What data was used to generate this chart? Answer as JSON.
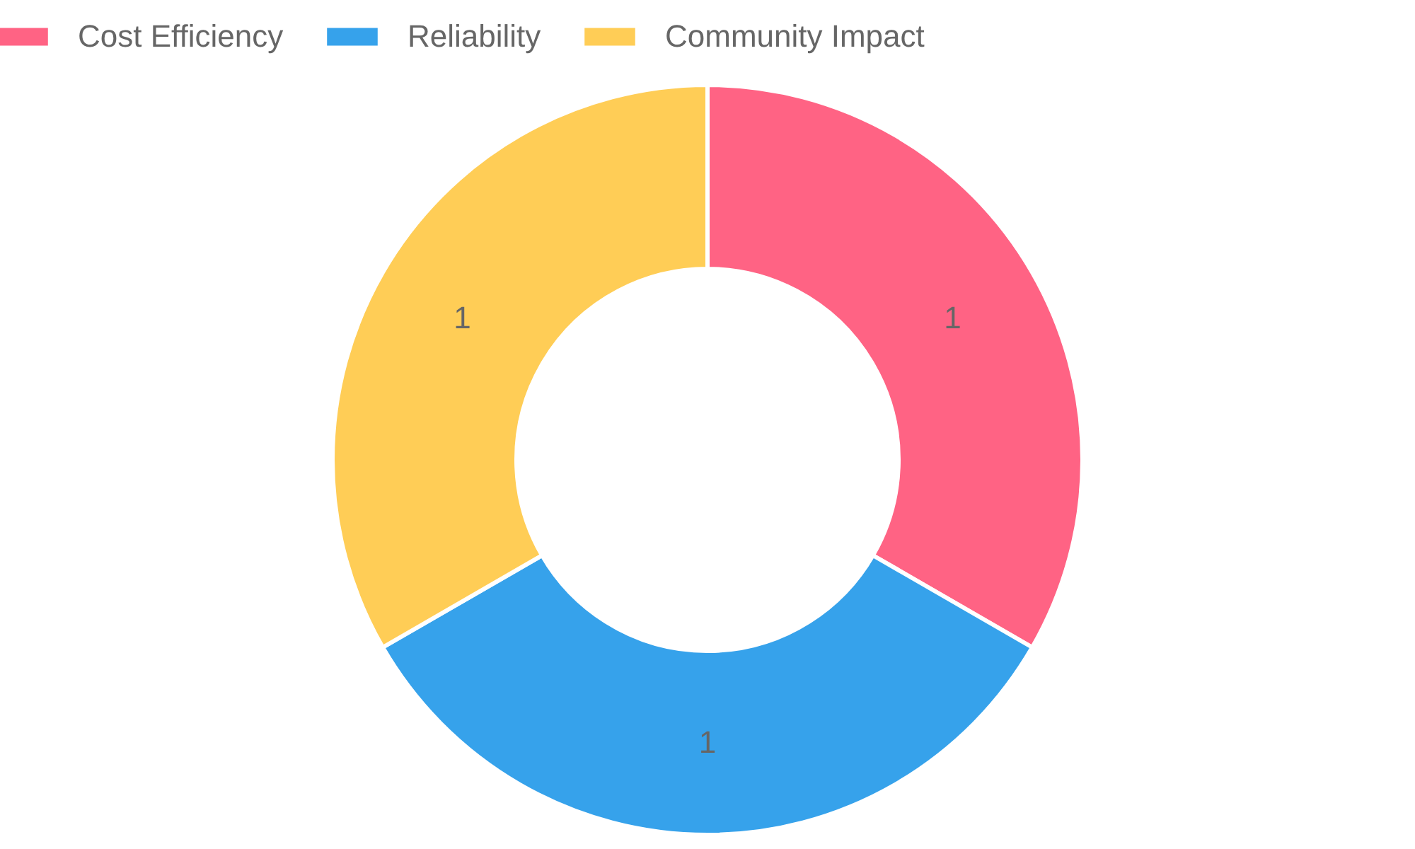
{
  "chart_data": {
    "type": "donut",
    "categories": [
      "Cost Efficiency",
      "Reliability",
      "Community Impact"
    ],
    "values": [
      1,
      1,
      1
    ],
    "colors": [
      "#ff6384",
      "#36a2eb",
      "#ffcd56"
    ],
    "data_labels": true,
    "legend": "top"
  }
}
